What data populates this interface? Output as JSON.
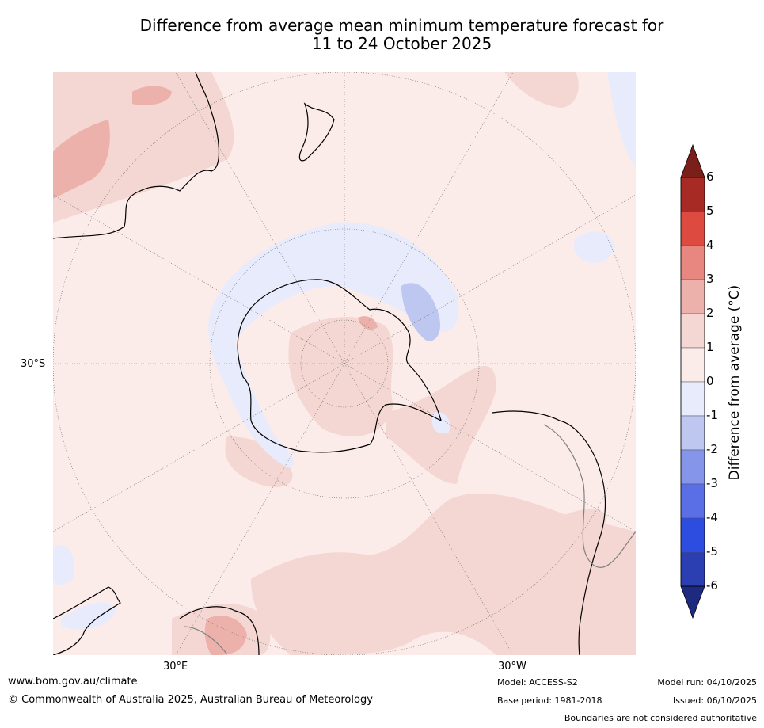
{
  "title": {
    "line1": "Difference from average mean minimum temperature forecast for",
    "line2": "11 to 24 October 2025"
  },
  "map": {
    "lat_label": "30°S",
    "lon_label_east": "30°E",
    "lon_label_west": "30°W"
  },
  "colorbar": {
    "title": "Difference from average (°C)",
    "ticks": [
      "6",
      "5",
      "4",
      "3",
      "2",
      "1",
      "0",
      "-1",
      "-2",
      "-3",
      "-4",
      "-5",
      "-6"
    ],
    "colors": [
      "#7a1f1a",
      "#a82a24",
      "#dd4a40",
      "#e8877f",
      "#ecb1aa",
      "#f4d6d3",
      "#fbecea",
      "#e8ebfb",
      "#bec7f0",
      "#8495ea",
      "#5a6fe6",
      "#2c4de0",
      "#2b3fb2",
      "#1d2a80"
    ]
  },
  "footer": {
    "website": "www.bom.gov.au/climate",
    "copyright": "© Commonwealth of Australia 2025, Australian Bureau of Meteorology",
    "model": "Model: ACCESS-S2",
    "base_period": "Base period: 1981-2018",
    "model_run": "Model run: 04/10/2025",
    "issued": "Issued: 06/10/2025",
    "disclaimer": "Boundaries are not considered authoritative"
  }
}
